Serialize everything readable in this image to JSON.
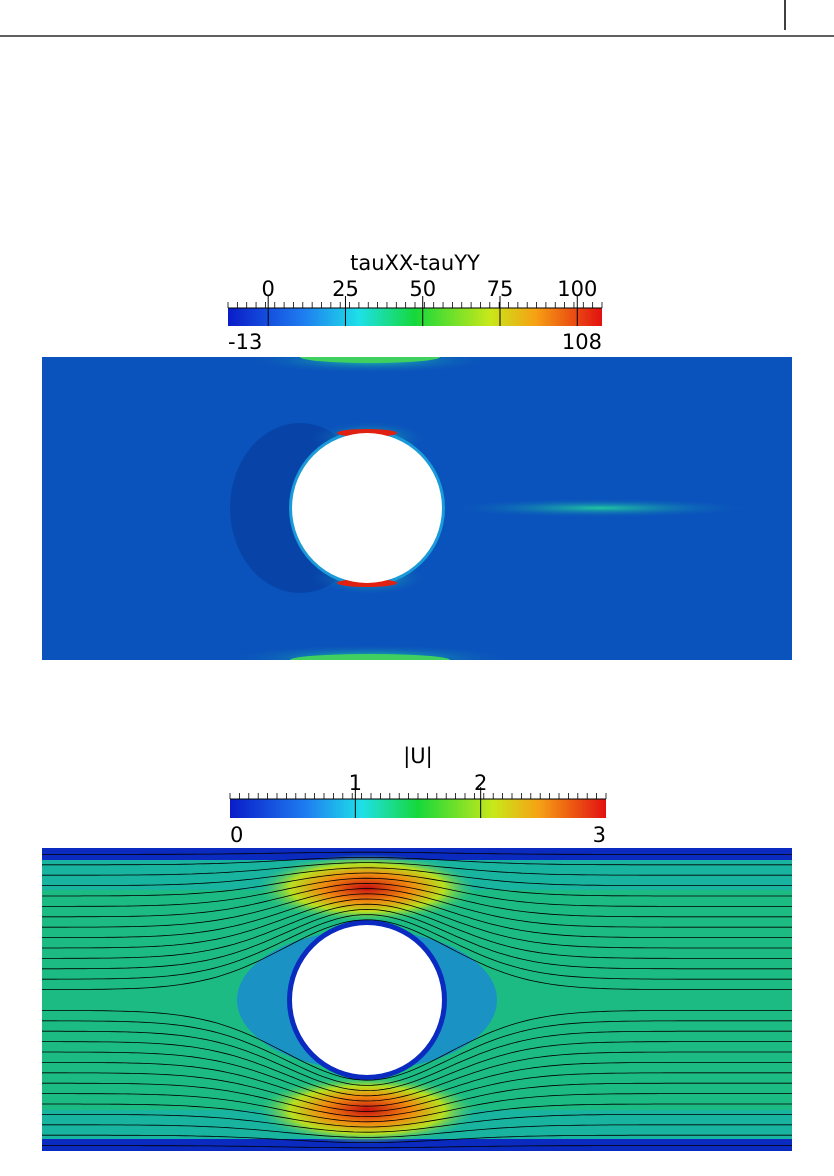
{
  "figures": [
    {
      "colorbar": {
        "title": "tauXX-tauYY",
        "range": [
          -13,
          108
        ],
        "ticks": [
          0,
          25,
          50,
          75,
          100
        ]
      }
    },
    {
      "colorbar": {
        "title": "|U|",
        "range": [
          0,
          3
        ],
        "ticks": [
          1,
          2
        ]
      }
    }
  ]
}
